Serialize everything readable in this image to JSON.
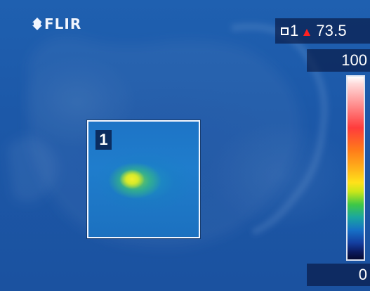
{
  "branding": {
    "logo_text": "FLIR",
    "logo_icon": "flir-emblem-icon"
  },
  "measurement": {
    "spot_id": "1",
    "value": "73.5",
    "box_icon": "box-measure-icon",
    "trend_icon": "max-triangle-icon",
    "trend_color": "#ff2020"
  },
  "scale": {
    "max": "100",
    "min": "0",
    "palette": "iron-rainbow"
  },
  "spot_box": {
    "label": "1"
  },
  "colors": {
    "background": "#1b57a6",
    "overlay": "#06143c",
    "text": "#ffffff"
  }
}
